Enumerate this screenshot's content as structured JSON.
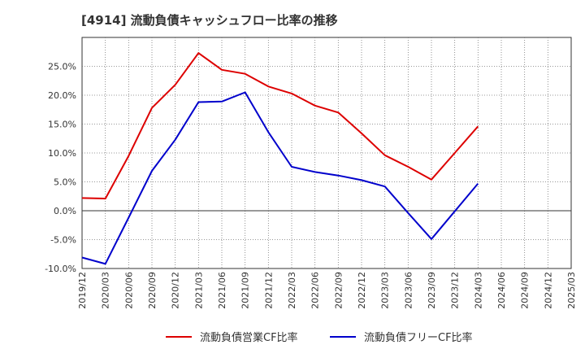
{
  "title": "[4914]  流動負債キャッシュフロー比率の推移",
  "chart_data": {
    "type": "line",
    "x": [
      "2019/12",
      "2020/03",
      "2020/06",
      "2020/09",
      "2020/12",
      "2021/03",
      "2021/06",
      "2021/09",
      "2021/12",
      "2022/03",
      "2022/06",
      "2022/09",
      "2022/12",
      "2023/03",
      "2023/06",
      "2023/09",
      "2023/12",
      "2024/03",
      "2024/06",
      "2024/09",
      "2024/12",
      "2025/03"
    ],
    "yticks": [
      "25.0%",
      "20.0%",
      "15.0%",
      "10.0%",
      "5.0%",
      "0.0%",
      "-5.0%",
      "-10.0%"
    ],
    "ylim": [
      -10,
      30
    ],
    "grid": true,
    "legend_position": "bottom",
    "series": [
      {
        "name": "流動負債営業CF比率",
        "color": "#dd0000",
        "values": [
          2.2,
          2.1,
          9.5,
          17.8,
          21.8,
          27.3,
          24.4,
          23.7,
          21.5,
          20.3,
          18.2,
          17.0,
          13.4,
          9.6,
          7.6,
          5.4,
          10.0,
          14.6,
          null,
          null,
          null,
          null
        ]
      },
      {
        "name": "流動負債フリーCF比率",
        "color": "#0000cc",
        "values": [
          -8.1,
          -9.2,
          -1.2,
          6.9,
          12.3,
          18.8,
          18.9,
          20.5,
          13.6,
          7.6,
          6.7,
          6.1,
          5.3,
          4.2,
          -0.4,
          -4.9,
          -0.1,
          4.7,
          null,
          null,
          null,
          null
        ]
      }
    ]
  }
}
